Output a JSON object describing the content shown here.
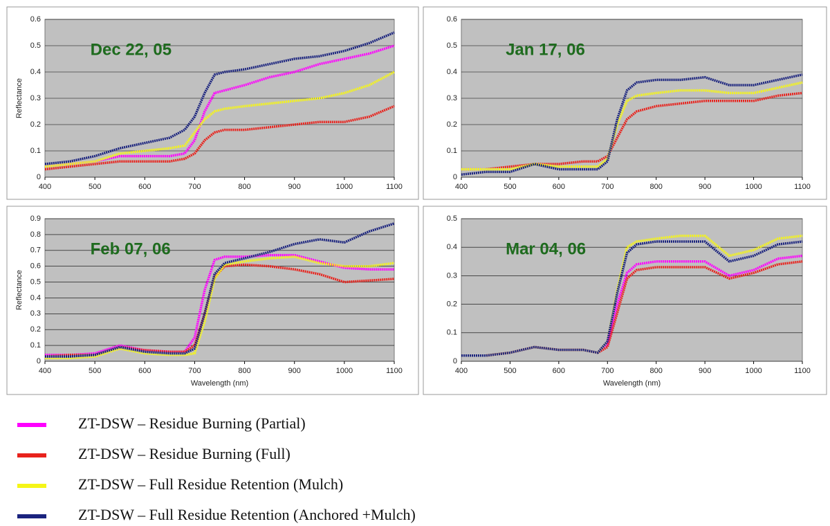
{
  "chart_data": [
    {
      "type": "line",
      "annotation": "Dec 22, 05",
      "ylabel": "Reflectance",
      "x": [
        400,
        450,
        500,
        550,
        600,
        650,
        680,
        700,
        720,
        740,
        760,
        800,
        850,
        900,
        950,
        1000,
        1050,
        1100
      ],
      "xlim": [
        400,
        1100
      ],
      "xticks": [
        400,
        500,
        600,
        700,
        800,
        900,
        1000,
        1100
      ],
      "ylim": [
        0,
        0.6
      ],
      "yticks": [
        0,
        0.1,
        0.2,
        0.3,
        0.4,
        0.5,
        0.6
      ],
      "grid": true,
      "series": [
        {
          "name": "ZT-DSW – Residue Burning (Partial)",
          "color": "#ff00ff",
          "values": [
            0.04,
            0.05,
            0.06,
            0.08,
            0.08,
            0.08,
            0.09,
            0.14,
            0.25,
            0.32,
            0.33,
            0.35,
            0.38,
            0.4,
            0.43,
            0.45,
            0.47,
            0.5
          ]
        },
        {
          "name": "ZT-DSW – Residue Burning (Full)",
          "color": "#e8221c",
          "values": [
            0.03,
            0.04,
            0.05,
            0.06,
            0.06,
            0.06,
            0.07,
            0.09,
            0.14,
            0.17,
            0.18,
            0.18,
            0.19,
            0.2,
            0.21,
            0.21,
            0.23,
            0.27
          ]
        },
        {
          "name": "ZT-DSW – Full Residue Retention (Mulch)",
          "color": "#f5f518",
          "values": [
            0.04,
            0.05,
            0.06,
            0.09,
            0.1,
            0.11,
            0.12,
            0.17,
            0.22,
            0.25,
            0.26,
            0.27,
            0.28,
            0.29,
            0.3,
            0.32,
            0.35,
            0.4
          ]
        },
        {
          "name": "ZT-DSW – Full Residue Retention (Anchored +Mulch)",
          "color": "#1a237e",
          "values": [
            0.05,
            0.06,
            0.08,
            0.11,
            0.13,
            0.15,
            0.18,
            0.23,
            0.32,
            0.39,
            0.4,
            0.41,
            0.43,
            0.45,
            0.46,
            0.48,
            0.51,
            0.55
          ]
        }
      ]
    },
    {
      "type": "line",
      "annotation": "Jan 17, 06",
      "x": [
        400,
        450,
        500,
        550,
        600,
        650,
        680,
        700,
        720,
        740,
        760,
        800,
        850,
        900,
        950,
        1000,
        1050,
        1100
      ],
      "xlim": [
        400,
        1100
      ],
      "xticks": [
        400,
        500,
        600,
        700,
        800,
        900,
        1000,
        1100
      ],
      "ylim": [
        0,
        0.6
      ],
      "yticks": [
        0,
        0.1,
        0.2,
        0.3,
        0.4,
        0.5,
        0.6
      ],
      "grid": true,
      "series": [
        {
          "color": "#e8221c",
          "values": [
            0.03,
            0.03,
            0.04,
            0.05,
            0.05,
            0.06,
            0.06,
            0.08,
            0.15,
            0.22,
            0.25,
            0.27,
            0.28,
            0.29,
            0.29,
            0.29,
            0.31,
            0.32
          ]
        },
        {
          "color": "#f5f518",
          "values": [
            0.03,
            0.03,
            0.03,
            0.05,
            0.04,
            0.04,
            0.04,
            0.07,
            0.2,
            0.29,
            0.31,
            0.32,
            0.33,
            0.33,
            0.32,
            0.32,
            0.34,
            0.36
          ]
        },
        {
          "color": "#1a237e",
          "values": [
            0.01,
            0.02,
            0.02,
            0.05,
            0.03,
            0.03,
            0.03,
            0.06,
            0.22,
            0.33,
            0.36,
            0.37,
            0.37,
            0.38,
            0.35,
            0.35,
            0.37,
            0.39
          ]
        }
      ]
    },
    {
      "type": "line",
      "annotation": "Feb 07, 06",
      "ylabel": "Reflectance",
      "xlabel": "Wavelength (nm)",
      "x": [
        400,
        450,
        500,
        550,
        600,
        650,
        680,
        700,
        720,
        740,
        760,
        800,
        850,
        900,
        950,
        1000,
        1050,
        1100
      ],
      "xlim": [
        400,
        1100
      ],
      "xticks": [
        400,
        500,
        600,
        700,
        800,
        900,
        1000,
        1100
      ],
      "ylim": [
        0,
        0.9
      ],
      "yticks": [
        0,
        0.1,
        0.2,
        0.3,
        0.4,
        0.5,
        0.6,
        0.7,
        0.8,
        0.9
      ],
      "grid": true,
      "series": [
        {
          "color": "#ff00ff",
          "values": [
            0.04,
            0.04,
            0.05,
            0.1,
            0.07,
            0.06,
            0.06,
            0.15,
            0.45,
            0.64,
            0.66,
            0.66,
            0.67,
            0.67,
            0.63,
            0.59,
            0.58,
            0.58
          ]
        },
        {
          "color": "#e8221c",
          "values": [
            0.03,
            0.04,
            0.04,
            0.09,
            0.07,
            0.06,
            0.06,
            0.1,
            0.3,
            0.53,
            0.6,
            0.61,
            0.6,
            0.58,
            0.55,
            0.5,
            0.51,
            0.52
          ]
        },
        {
          "color": "#f5f518",
          "values": [
            0.02,
            0.02,
            0.03,
            0.08,
            0.05,
            0.04,
            0.04,
            0.05,
            0.25,
            0.52,
            0.61,
            0.63,
            0.65,
            0.66,
            0.62,
            0.6,
            0.6,
            0.62
          ]
        },
        {
          "color": "#1a237e",
          "values": [
            0.03,
            0.03,
            0.04,
            0.09,
            0.06,
            0.05,
            0.05,
            0.08,
            0.3,
            0.55,
            0.62,
            0.65,
            0.69,
            0.74,
            0.77,
            0.75,
            0.82,
            0.87
          ]
        }
      ]
    },
    {
      "type": "line",
      "annotation": "Mar 04, 06",
      "xlabel": "Wavelength (nm)",
      "x": [
        400,
        450,
        500,
        550,
        600,
        650,
        680,
        700,
        720,
        740,
        760,
        800,
        850,
        900,
        950,
        1000,
        1050,
        1100
      ],
      "xlim": [
        400,
        1100
      ],
      "xticks": [
        400,
        500,
        600,
        700,
        800,
        900,
        1000,
        1100
      ],
      "ylim": [
        0,
        0.5
      ],
      "yticks": [
        0,
        0.1,
        0.2,
        0.3,
        0.4,
        0.5
      ],
      "grid": true,
      "series": [
        {
          "color": "#ff00ff",
          "values": [
            0.02,
            0.02,
            0.03,
            0.05,
            0.04,
            0.04,
            0.03,
            0.06,
            0.2,
            0.31,
            0.34,
            0.35,
            0.35,
            0.35,
            0.3,
            0.32,
            0.36,
            0.37
          ]
        },
        {
          "color": "#e8221c",
          "values": [
            0.02,
            0.02,
            0.03,
            0.05,
            0.04,
            0.04,
            0.03,
            0.05,
            0.17,
            0.29,
            0.32,
            0.33,
            0.33,
            0.33,
            0.29,
            0.31,
            0.34,
            0.35
          ]
        },
        {
          "color": "#f5f518",
          "values": [
            0.02,
            0.02,
            0.03,
            0.05,
            0.04,
            0.04,
            0.03,
            0.07,
            0.25,
            0.4,
            0.42,
            0.43,
            0.44,
            0.44,
            0.37,
            0.39,
            0.43,
            0.44
          ]
        },
        {
          "color": "#1a237e",
          "values": [
            0.02,
            0.02,
            0.03,
            0.05,
            0.04,
            0.04,
            0.03,
            0.07,
            0.24,
            0.38,
            0.41,
            0.42,
            0.42,
            0.42,
            0.35,
            0.37,
            0.41,
            0.42
          ]
        }
      ]
    }
  ]
}
